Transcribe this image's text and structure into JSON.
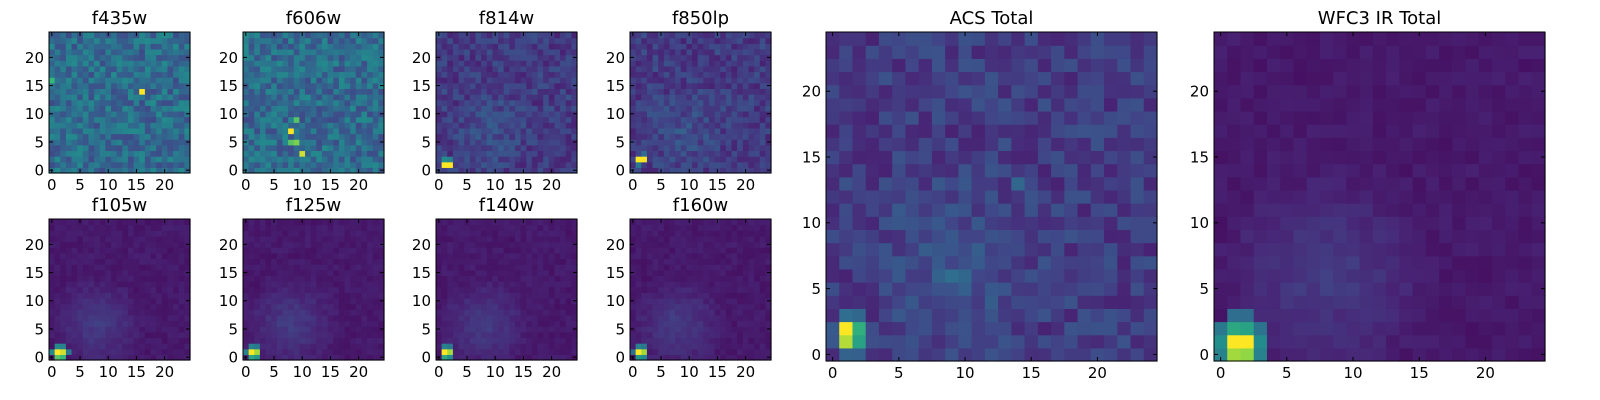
{
  "chart_data": [
    {
      "type": "heatmap",
      "id": "f435w",
      "title": "f435w",
      "grid_size": 25,
      "xlim": [
        -0.5,
        24.5
      ],
      "ylim": [
        -0.5,
        24.5
      ],
      "x_ticks": [
        0,
        5,
        10,
        15,
        20
      ],
      "y_ticks": [
        0,
        5,
        10,
        15,
        20
      ],
      "colormap": "viridis",
      "texture": "noisy_bright",
      "hotspots": [
        {
          "x": 16,
          "y": 14,
          "level": 1.0
        },
        {
          "x": 0,
          "y": 16,
          "level": 0.75
        }
      ]
    },
    {
      "type": "heatmap",
      "id": "f606w",
      "title": "f606w",
      "grid_size": 25,
      "xlim": [
        -0.5,
        24.5
      ],
      "ylim": [
        -0.5,
        24.5
      ],
      "x_ticks": [
        0,
        5,
        10,
        15,
        20
      ],
      "y_ticks": [
        0,
        5,
        10,
        15,
        20
      ],
      "colormap": "viridis",
      "texture": "noisy_bright",
      "hotspots": [
        {
          "x": 8,
          "y": 7,
          "level": 1.0
        },
        {
          "x": 10,
          "y": 3,
          "level": 0.95
        },
        {
          "x": 9,
          "y": 5,
          "level": 0.85
        },
        {
          "x": 8,
          "y": 5,
          "level": 0.8
        },
        {
          "x": 9,
          "y": 9,
          "level": 0.8
        }
      ]
    },
    {
      "type": "heatmap",
      "id": "f814w",
      "title": "f814w",
      "grid_size": 25,
      "xlim": [
        -0.5,
        24.5
      ],
      "ylim": [
        -0.5,
        24.5
      ],
      "x_ticks": [
        0,
        5,
        10,
        15,
        20
      ],
      "y_ticks": [
        0,
        5,
        10,
        15,
        20
      ],
      "colormap": "viridis",
      "texture": "noisy_dim",
      "hotspots": [
        {
          "x": 1,
          "y": 1,
          "level": 1.0
        },
        {
          "x": 2,
          "y": 1,
          "level": 1.0
        },
        {
          "x": 1,
          "y": 2,
          "level": 0.6
        },
        {
          "x": 2,
          "y": 2,
          "level": 0.55
        }
      ]
    },
    {
      "type": "heatmap",
      "id": "f850lp",
      "title": "f850lp",
      "grid_size": 25,
      "xlim": [
        -0.5,
        24.5
      ],
      "ylim": [
        -0.5,
        24.5
      ],
      "x_ticks": [
        0,
        5,
        10,
        15,
        20
      ],
      "y_ticks": [
        0,
        5,
        10,
        15,
        20
      ],
      "colormap": "viridis",
      "texture": "noisy_dim",
      "hotspots": [
        {
          "x": 1,
          "y": 2,
          "level": 1.0
        },
        {
          "x": 2,
          "y": 2,
          "level": 1.0
        },
        {
          "x": 1,
          "y": 1,
          "level": 0.5
        },
        {
          "x": 2,
          "y": 3,
          "level": 0.45
        }
      ]
    },
    {
      "type": "heatmap",
      "id": "f105w",
      "title": "f105w",
      "grid_size": 25,
      "xlim": [
        -0.5,
        24.5
      ],
      "ylim": [
        -0.5,
        24.5
      ],
      "x_ticks": [
        0,
        5,
        10,
        15,
        20
      ],
      "y_ticks": [
        0,
        5,
        10,
        15,
        20
      ],
      "colormap": "viridis",
      "texture": "smooth",
      "hotspots": [
        {
          "x": 1,
          "y": 1,
          "level": 1.0
        },
        {
          "x": 2,
          "y": 1,
          "level": 0.95
        },
        {
          "x": 1,
          "y": 0,
          "level": 0.8
        },
        {
          "x": 2,
          "y": 0,
          "level": 0.75
        },
        {
          "x": 0,
          "y": 1,
          "level": 0.6
        },
        {
          "x": 1,
          "y": 2,
          "level": 0.6
        },
        {
          "x": 2,
          "y": 2,
          "level": 0.55
        },
        {
          "x": 3,
          "y": 1,
          "level": 0.5
        }
      ]
    },
    {
      "type": "heatmap",
      "id": "f125w",
      "title": "f125w",
      "grid_size": 25,
      "xlim": [
        -0.5,
        24.5
      ],
      "ylim": [
        -0.5,
        24.5
      ],
      "x_ticks": [
        0,
        5,
        10,
        15,
        20
      ],
      "y_ticks": [
        0,
        5,
        10,
        15,
        20
      ],
      "colormap": "viridis",
      "texture": "smooth",
      "hotspots": [
        {
          "x": 1,
          "y": 1,
          "level": 1.0
        },
        {
          "x": 2,
          "y": 1,
          "level": 0.9
        },
        {
          "x": 1,
          "y": 0,
          "level": 0.7
        },
        {
          "x": 2,
          "y": 0,
          "level": 0.65
        },
        {
          "x": 0,
          "y": 1,
          "level": 0.55
        },
        {
          "x": 1,
          "y": 2,
          "level": 0.55
        },
        {
          "x": 2,
          "y": 2,
          "level": 0.5
        }
      ]
    },
    {
      "type": "heatmap",
      "id": "f140w",
      "title": "f140w",
      "grid_size": 25,
      "xlim": [
        -0.5,
        24.5
      ],
      "ylim": [
        -0.5,
        24.5
      ],
      "x_ticks": [
        0,
        5,
        10,
        15,
        20
      ],
      "y_ticks": [
        0,
        5,
        10,
        15,
        20
      ],
      "colormap": "viridis",
      "texture": "smooth",
      "hotspots": [
        {
          "x": 1,
          "y": 1,
          "level": 1.0
        },
        {
          "x": 2,
          "y": 1,
          "level": 0.9
        },
        {
          "x": 1,
          "y": 0,
          "level": 0.7
        },
        {
          "x": 2,
          "y": 0,
          "level": 0.6
        },
        {
          "x": 1,
          "y": 2,
          "level": 0.55
        },
        {
          "x": 2,
          "y": 2,
          "level": 0.5
        }
      ]
    },
    {
      "type": "heatmap",
      "id": "f160w",
      "title": "f160w",
      "grid_size": 25,
      "xlim": [
        -0.5,
        24.5
      ],
      "ylim": [
        -0.5,
        24.5
      ],
      "x_ticks": [
        0,
        5,
        10,
        15,
        20
      ],
      "y_ticks": [
        0,
        5,
        10,
        15,
        20
      ],
      "colormap": "viridis",
      "texture": "smooth",
      "hotspots": [
        {
          "x": 1,
          "y": 1,
          "level": 1.0
        },
        {
          "x": 2,
          "y": 1,
          "level": 0.9
        },
        {
          "x": 1,
          "y": 0,
          "level": 0.65
        },
        {
          "x": 2,
          "y": 0,
          "level": 0.6
        },
        {
          "x": 1,
          "y": 2,
          "level": 0.55
        },
        {
          "x": 2,
          "y": 2,
          "level": 0.5
        },
        {
          "x": 0,
          "y": 1,
          "level": 0.45
        }
      ]
    },
    {
      "type": "heatmap",
      "id": "acs_total",
      "title": "ACS Total",
      "grid_size": 25,
      "xlim": [
        -0.5,
        24.5
      ],
      "ylim": [
        -0.5,
        24.5
      ],
      "x_ticks": [
        0,
        5,
        10,
        15,
        20
      ],
      "y_ticks": [
        0,
        5,
        10,
        15,
        20
      ],
      "colormap": "viridis",
      "texture": "noisy_dim",
      "hotspots": [
        {
          "x": 1,
          "y": 2,
          "level": 1.0
        },
        {
          "x": 1,
          "y": 1,
          "level": 0.92
        },
        {
          "x": 2,
          "y": 2,
          "level": 0.72
        },
        {
          "x": 2,
          "y": 1,
          "level": 0.68
        },
        {
          "x": 1,
          "y": 3,
          "level": 0.45
        },
        {
          "x": 2,
          "y": 3,
          "level": 0.42
        },
        {
          "x": 1,
          "y": 0,
          "level": 0.4
        },
        {
          "x": 2,
          "y": 0,
          "level": 0.38
        },
        {
          "x": 0,
          "y": 2,
          "level": 0.35
        },
        {
          "x": 0,
          "y": 1,
          "level": 0.34
        },
        {
          "x": 9,
          "y": 6,
          "level": 0.45
        },
        {
          "x": 10,
          "y": 6,
          "level": 0.42
        },
        {
          "x": 8,
          "y": 6,
          "level": 0.4
        },
        {
          "x": 10,
          "y": 5,
          "level": 0.38
        },
        {
          "x": 14,
          "y": 13,
          "level": 0.42
        }
      ]
    },
    {
      "type": "heatmap",
      "id": "wfc3_ir_total",
      "title": "WFC3 IR Total",
      "grid_size": 25,
      "xlim": [
        -0.5,
        24.5
      ],
      "ylim": [
        -0.5,
        24.5
      ],
      "x_ticks": [
        0,
        5,
        10,
        15,
        20
      ],
      "y_ticks": [
        0,
        5,
        10,
        15,
        20
      ],
      "colormap": "viridis",
      "texture": "smooth",
      "hotspots": [
        {
          "x": 1,
          "y": 1,
          "level": 1.0
        },
        {
          "x": 2,
          "y": 1,
          "level": 1.0
        },
        {
          "x": 1,
          "y": 0,
          "level": 0.9
        },
        {
          "x": 2,
          "y": 0,
          "level": 0.88
        },
        {
          "x": 1,
          "y": 2,
          "level": 0.7
        },
        {
          "x": 2,
          "y": 2,
          "level": 0.68
        },
        {
          "x": 0,
          "y": 1,
          "level": 0.62
        },
        {
          "x": 3,
          "y": 1,
          "level": 0.6
        },
        {
          "x": 0,
          "y": 0,
          "level": 0.55
        },
        {
          "x": 3,
          "y": 0,
          "level": 0.55
        },
        {
          "x": 0,
          "y": 2,
          "level": 0.5
        },
        {
          "x": 3,
          "y": 2,
          "level": 0.48
        },
        {
          "x": 1,
          "y": 3,
          "level": 0.45
        },
        {
          "x": 2,
          "y": 3,
          "level": 0.44
        }
      ]
    }
  ]
}
